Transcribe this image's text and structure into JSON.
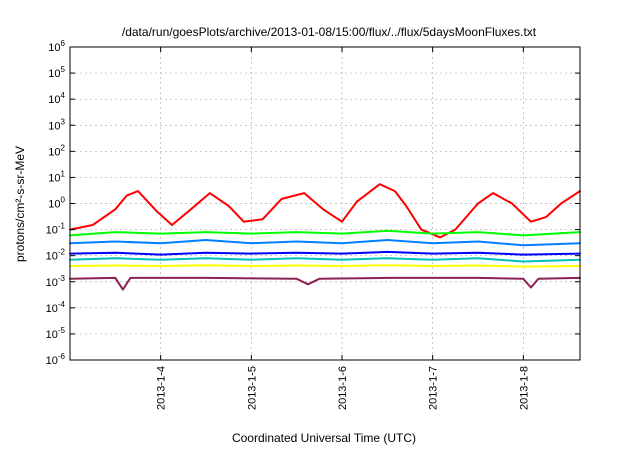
{
  "chart_data": {
    "type": "line",
    "title": "/data/run/goesPlots/archive/2013-01-08/15:00/flux/../flux/5daysMoonFluxes.txt",
    "xlabel": "Coordinated Universal Time (UTC)",
    "ylabel": "protons/cm²-s-sr-MeV",
    "yscale": "log",
    "ylim_exponent": [
      -6,
      6
    ],
    "ytick_base": "10",
    "ytick_exponents": [
      "-6",
      "-5",
      "-4",
      "-3",
      "-2",
      "-1",
      "0",
      "1",
      "2",
      "3",
      "4",
      "5",
      "6"
    ],
    "xlim": [
      "2013-01-03 00:00",
      "2013-01-08 15:00"
    ],
    "xticks": [
      "2013-1-4",
      "2013-1-5",
      "2013-1-6",
      "2013-1-7",
      "2013-1-8"
    ],
    "grid": true,
    "series": [
      {
        "color": "#ff0000",
        "x": [
          "2013-01-03 00:00",
          "2013-01-03 06:00",
          "2013-01-03 12:00",
          "2013-01-03 15:00",
          "2013-01-03 18:00",
          "2013-01-03 23:00",
          "2013-01-04 03:00",
          "2013-01-04 08:00",
          "2013-01-04 13:00",
          "2013-01-04 18:00",
          "2013-01-04 22:00",
          "2013-01-05 03:00",
          "2013-01-05 08:00",
          "2013-01-05 14:00",
          "2013-01-05 19:00",
          "2013-01-06 00:00",
          "2013-01-06 04:00",
          "2013-01-06 10:00",
          "2013-01-06 14:00",
          "2013-01-06 17:00",
          "2013-01-06 21:00",
          "2013-01-07 02:00",
          "2013-01-07 06:00",
          "2013-01-07 12:00",
          "2013-01-07 16:00",
          "2013-01-07 21:00",
          "2013-01-08 02:00",
          "2013-01-08 06:00",
          "2013-01-08 10:00",
          "2013-01-08 15:00"
        ],
        "y": [
          0.1,
          0.15,
          0.6,
          2.0,
          3.0,
          0.5,
          0.15,
          0.6,
          2.5,
          0.8,
          0.2,
          0.25,
          1.5,
          2.5,
          0.6,
          0.2,
          1.2,
          5.5,
          3.0,
          0.8,
          0.1,
          0.05,
          0.1,
          1.0,
          2.5,
          1.0,
          0.2,
          0.3,
          1.0,
          3.0
        ]
      },
      {
        "color": "#00ff00",
        "x": [
          "2013-01-03 00:00",
          "2013-01-03 12:00",
          "2013-01-04 00:00",
          "2013-01-04 12:00",
          "2013-01-05 00:00",
          "2013-01-05 12:00",
          "2013-01-06 00:00",
          "2013-01-06 12:00",
          "2013-01-07 00:00",
          "2013-01-07 12:00",
          "2013-01-08 00:00",
          "2013-01-08 15:00"
        ],
        "y": [
          0.06,
          0.08,
          0.07,
          0.08,
          0.07,
          0.08,
          0.07,
          0.09,
          0.07,
          0.08,
          0.06,
          0.08
        ]
      },
      {
        "color": "#0080ff",
        "x": [
          "2013-01-03 00:00",
          "2013-01-03 12:00",
          "2013-01-04 00:00",
          "2013-01-04 12:00",
          "2013-01-05 00:00",
          "2013-01-05 12:00",
          "2013-01-06 00:00",
          "2013-01-06 12:00",
          "2013-01-07 00:00",
          "2013-01-07 12:00",
          "2013-01-08 00:00",
          "2013-01-08 15:00"
        ],
        "y": [
          0.03,
          0.035,
          0.03,
          0.04,
          0.03,
          0.035,
          0.03,
          0.04,
          0.03,
          0.035,
          0.025,
          0.03
        ]
      },
      {
        "color": "#0000ff",
        "x": [
          "2013-01-03 00:00",
          "2013-01-03 12:00",
          "2013-01-04 00:00",
          "2013-01-04 12:00",
          "2013-01-05 00:00",
          "2013-01-05 12:00",
          "2013-01-06 00:00",
          "2013-01-06 12:00",
          "2013-01-07 00:00",
          "2013-01-07 12:00",
          "2013-01-08 00:00",
          "2013-01-08 15:00"
        ],
        "y": [
          0.012,
          0.013,
          0.011,
          0.013,
          0.012,
          0.013,
          0.012,
          0.014,
          0.012,
          0.013,
          0.011,
          0.012
        ]
      },
      {
        "color": "#00bfbf",
        "x": [
          "2013-01-03 00:00",
          "2013-01-03 12:00",
          "2013-01-04 00:00",
          "2013-01-04 12:00",
          "2013-01-05 00:00",
          "2013-01-05 12:00",
          "2013-01-06 00:00",
          "2013-01-06 12:00",
          "2013-01-07 00:00",
          "2013-01-07 12:00",
          "2013-01-08 00:00",
          "2013-01-08 15:00"
        ],
        "y": [
          0.007,
          0.008,
          0.007,
          0.008,
          0.007,
          0.008,
          0.007,
          0.008,
          0.007,
          0.008,
          0.006,
          0.007
        ]
      },
      {
        "color": "#ffff00",
        "x": [
          "2013-01-03 00:00",
          "2013-01-03 12:00",
          "2013-01-04 00:00",
          "2013-01-04 12:00",
          "2013-01-05 00:00",
          "2013-01-05 12:00",
          "2013-01-06 00:00",
          "2013-01-06 12:00",
          "2013-01-07 00:00",
          "2013-01-07 12:00",
          "2013-01-08 00:00",
          "2013-01-08 15:00"
        ],
        "y": [
          0.004,
          0.0042,
          0.004,
          0.0043,
          0.004,
          0.0042,
          0.004,
          0.0043,
          0.004,
          0.0042,
          0.0038,
          0.004
        ]
      },
      {
        "color": "#8b2252",
        "x": [
          "2013-01-03 00:00",
          "2013-01-03 12:00",
          "2013-01-03 14:00",
          "2013-01-03 16:00",
          "2013-01-04 12:00",
          "2013-01-05 12:00",
          "2013-01-05 15:00",
          "2013-01-05 18:00",
          "2013-01-06 12:00",
          "2013-01-07 12:00",
          "2013-01-08 00:00",
          "2013-01-08 02:00",
          "2013-01-08 04:00",
          "2013-01-08 15:00"
        ],
        "y": [
          0.0013,
          0.0014,
          0.0005,
          0.0014,
          0.0014,
          0.0013,
          0.0008,
          0.0013,
          0.0014,
          0.0014,
          0.0013,
          0.0006,
          0.0013,
          0.0014
        ]
      }
    ]
  }
}
